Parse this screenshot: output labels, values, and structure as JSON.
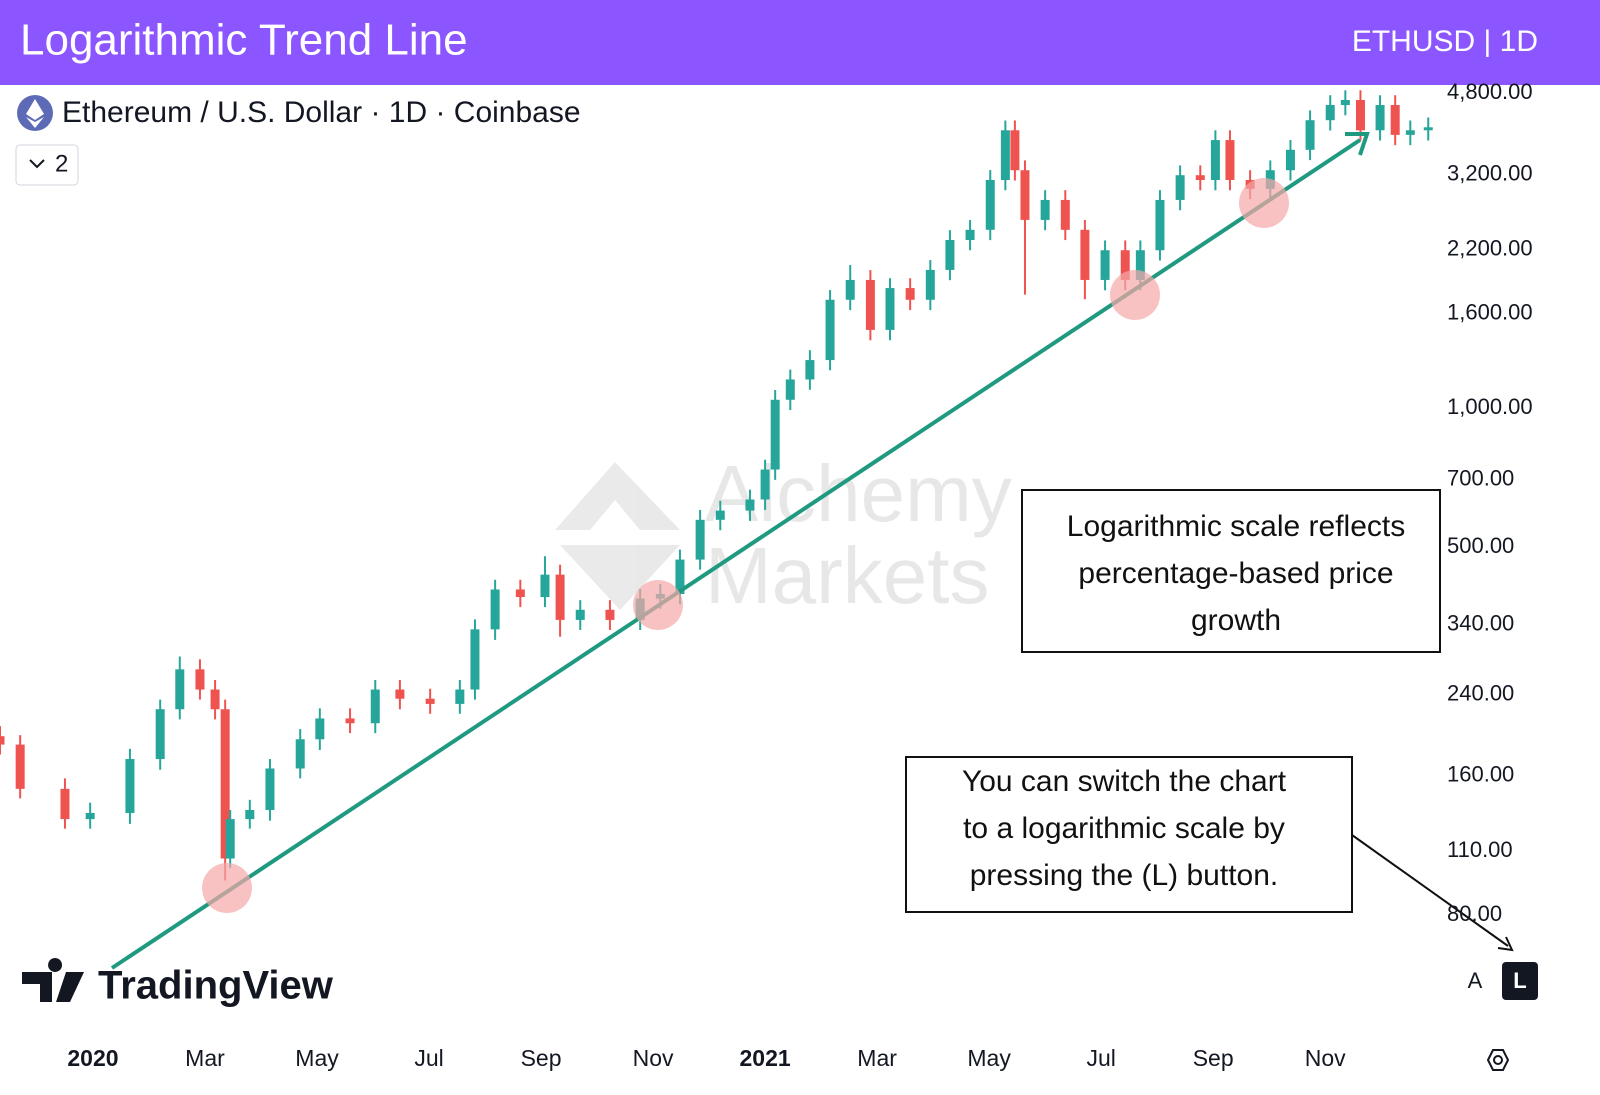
{
  "header": {
    "title": "Logarithmic Trend Line",
    "badge": "ETHUSD | 1D"
  },
  "chart_data": {
    "type": "candlestick",
    "symbol": "Ethereum / U.S. Dollar · 1D · Coinbase",
    "indicators": 2,
    "logo": "TradingView",
    "watermark": [
      "Alchemy",
      "Markets"
    ],
    "scale_buttons": [
      "A",
      "L"
    ],
    "log_scale": true,
    "grid": false,
    "up_color": "#26a69a",
    "down_color": "#ef5350",
    "annotations": [
      {
        "lines": [
          "Logarithmic scale reflects",
          "percentage-based price",
          "growth"
        ]
      },
      {
        "lines": [
          "You can switch the chart",
          "to a logarithmic scale by",
          "pressing the (L) button."
        ]
      }
    ],
    "xlim": [
      -1.66,
      24.05
    ],
    "xticks": [
      {
        "value": 0,
        "label": "2020"
      },
      {
        "value": 2,
        "label": "Mar"
      },
      {
        "value": 4,
        "label": "May"
      },
      {
        "value": 6,
        "label": "Jul"
      },
      {
        "value": 8,
        "label": "Sep"
      },
      {
        "value": 10,
        "label": "Nov"
      },
      {
        "value": 12,
        "label": "2021"
      },
      {
        "value": 14,
        "label": "Mar"
      },
      {
        "value": 16,
        "label": "May"
      },
      {
        "value": 18,
        "label": "Jul"
      },
      {
        "value": 20,
        "label": "Sep"
      },
      {
        "value": 22,
        "label": "Nov"
      }
    ],
    "ylim": [
      44,
      5000
    ],
    "yticks": [
      {
        "value": 80,
        "label": "80.00"
      },
      {
        "value": 110,
        "label": "110.00"
      },
      {
        "value": 160,
        "label": "160.00"
      },
      {
        "value": 240,
        "label": "240.00"
      },
      {
        "value": 340,
        "label": "340.00"
      },
      {
        "value": 500,
        "label": "500.00"
      },
      {
        "value": 700,
        "label": "700.00"
      },
      {
        "value": 1000,
        "label": "1,000.00"
      },
      {
        "value": 1600,
        "label": "1,600.00"
      },
      {
        "value": 2200,
        "label": "2,200.00"
      },
      {
        "value": 3200,
        "label": "3,200.00"
      },
      {
        "value": 4800,
        "label": "4,800.00"
      }
    ],
    "x": [
      -1.66,
      -1.3,
      -0.5,
      -0.05,
      0.66,
      1.2,
      1.55,
      1.91,
      2.18,
      2.36,
      2.45,
      2.8,
      3.16,
      3.7,
      4.05,
      4.59,
      5.04,
      5.48,
      6.02,
      6.55,
      6.82,
      7.18,
      7.63,
      8.07,
      8.34,
      8.7,
      9.23,
      9.77,
      10.13,
      10.48,
      10.84,
      11.2,
      11.73,
      12.0,
      12.18,
      12.45,
      12.8,
      13.16,
      13.52,
      13.88,
      14.23,
      14.59,
      14.95,
      15.3,
      15.66,
      16.02,
      16.29,
      16.46,
      16.64,
      17.0,
      17.36,
      17.71,
      18.07,
      18.43,
      18.7,
      19.05,
      19.41,
      19.77,
      20.04,
      20.3,
      20.66,
      21.02,
      21.38,
      21.73,
      22.09,
      22.36,
      22.63,
      22.98,
      23.25,
      23.52,
      23.84
    ],
    "open": [
      195,
      187,
      150,
      129,
      133,
      174,
      223,
      272,
      246,
      223,
      106,
      129,
      135,
      166,
      192,
      213,
      208,
      246,
      235,
      229,
      246,
      332,
      405,
      390,
      436,
      348,
      366,
      348,
      387,
      396,
      470,
      573,
      600,
      634,
      736,
      1042,
      1153,
      1270,
      1715,
      1893,
      1476,
      1818,
      1715,
      1990,
      2310,
      2430,
      3115,
      3990,
      3270,
      2553,
      2820,
      2430,
      1893,
      2195,
      1893,
      2195,
      2820,
      3190,
      3115,
      3800,
      3115,
      2980,
      3270,
      3620,
      4196,
      4525,
      4640,
      3990,
      4525,
      3900,
      3990
    ],
    "high": [
      205,
      196,
      158,
      140,
      183,
      234,
      290,
      286,
      258,
      234,
      135,
      142,
      174,
      202,
      224,
      224,
      258,
      258,
      247,
      258,
      349,
      425,
      425,
      478,
      458,
      384,
      384,
      406,
      416,
      494,
      602,
      630,
      666,
      773,
      1094,
      1211,
      1334,
      1801,
      2040,
      1988,
      1909,
      1909,
      2090,
      2426,
      2552,
      3271,
      4190,
      4190,
      3434,
      2961,
      2961,
      2552,
      2305,
      2305,
      2305,
      2961,
      3350,
      3350,
      3990,
      3990,
      3271,
      3434,
      3801,
      4406,
      4751,
      4870,
      4872,
      4751,
      4751,
      4190,
      4253
    ],
    "low": [
      178,
      143,
      123,
      123,
      126,
      165,
      212,
      234,
      212,
      95,
      101,
      123,
      128,
      158,
      182,
      198,
      198,
      223,
      218,
      218,
      234,
      315,
      371,
      371,
      320,
      331,
      331,
      331,
      368,
      376,
      447,
      544,
      570,
      602,
      699,
      990,
      1095,
      1207,
      1629,
      1402,
      1402,
      1629,
      1629,
      1891,
      2195,
      2309,
      2959,
      3107,
      1760,
      2425,
      2309,
      1720,
      1798,
      1798,
      1798,
      2085,
      2679,
      2959,
      2959,
      2959,
      2831,
      2831,
      3107,
      3439,
      3986,
      4299,
      3791,
      3791,
      3705,
      3705,
      3791
    ],
    "close": [
      187,
      150,
      129,
      133,
      174,
      223,
      272,
      246,
      223,
      106,
      129,
      135,
      166,
      192,
      213,
      208,
      246,
      235,
      229,
      246,
      332,
      405,
      390,
      436,
      348,
      366,
      348,
      387,
      396,
      470,
      573,
      600,
      634,
      736,
      1042,
      1153,
      1270,
      1715,
      1893,
      1476,
      1818,
      1715,
      1990,
      2310,
      2430,
      3115,
      3990,
      3270,
      2553,
      2820,
      2430,
      1893,
      2195,
      1893,
      2195,
      2820,
      3190,
      3115,
      3800,
      3115,
      2980,
      3270,
      3620,
      4196,
      4525,
      4640,
      3990,
      4525,
      3900,
      3990,
      4050
    ]
  }
}
